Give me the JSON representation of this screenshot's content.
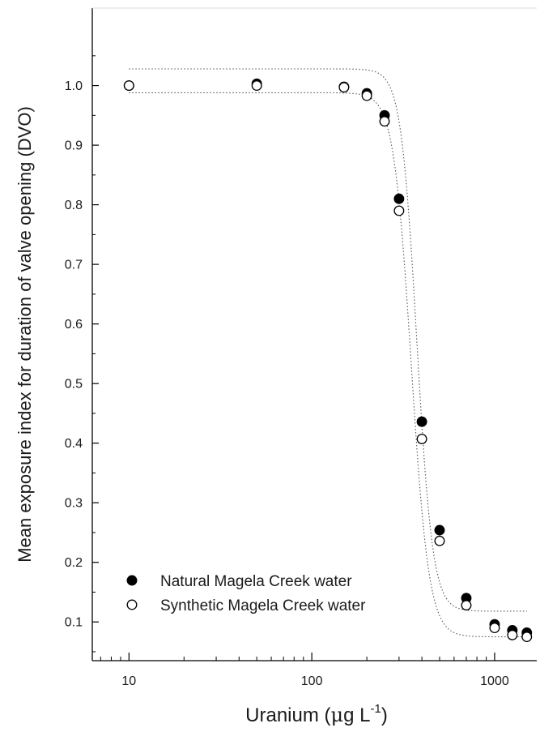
{
  "chart_data": {
    "type": "scatter",
    "xscale": "log",
    "xlim": [
      6.3,
      1700
    ],
    "ylim": [
      0.035,
      1.13
    ],
    "x_ticks": [
      10,
      100,
      1000
    ],
    "x_tick_labels": [
      "10",
      "100",
      "1000"
    ],
    "y_ticks": [
      0.1,
      0.2,
      0.3,
      0.4,
      0.5,
      0.6,
      0.7,
      0.8,
      0.9,
      1.0
    ],
    "y_tick_labels": [
      "0.1",
      "0.2",
      "0.3",
      "0.4",
      "0.5",
      "0.6",
      "0.7",
      "0.8",
      "0.9",
      "1.0"
    ],
    "xlabel_main": "Uranium (",
    "xlabel_mu": "μ",
    "xlabel_unit": "g L",
    "xlabel_sup": "-1",
    "xlabel_close": ")",
    "ylabel": "Mean exposure index for duration of valve opening (DVO)",
    "grid": false,
    "legend_position": "bottom-left",
    "series": [
      {
        "name": "Natural Magela Creek water",
        "marker": "filled-circle",
        "color": "#000000",
        "x": [
          10,
          50,
          150,
          200,
          250,
          300,
          400,
          500,
          700,
          1000,
          1250,
          1500
        ],
        "y": [
          1.0,
          1.003,
          0.998,
          0.987,
          0.95,
          0.81,
          0.436,
          0.254,
          0.14,
          0.096,
          0.086,
          0.082
        ]
      },
      {
        "name": "Synthetic Magela Creek water",
        "marker": "open-circle",
        "color": "#000000",
        "x": [
          10,
          50,
          150,
          200,
          250,
          300,
          400,
          500,
          700,
          1000,
          1250,
          1500
        ],
        "y": [
          1.0,
          1.0,
          0.997,
          0.983,
          0.94,
          0.79,
          0.407,
          0.236,
          0.128,
          0.09,
          0.078,
          0.075
        ]
      }
    ],
    "fit_curves": [
      {
        "series": "Natural Magela Creek water",
        "top": 1.028,
        "bottom": 0.118,
        "ec50": 375,
        "hill": 10
      },
      {
        "series": "Synthetic Magela Creek water",
        "top": 0.988,
        "bottom": 0.075,
        "ec50": 350,
        "hill": 9
      }
    ]
  }
}
